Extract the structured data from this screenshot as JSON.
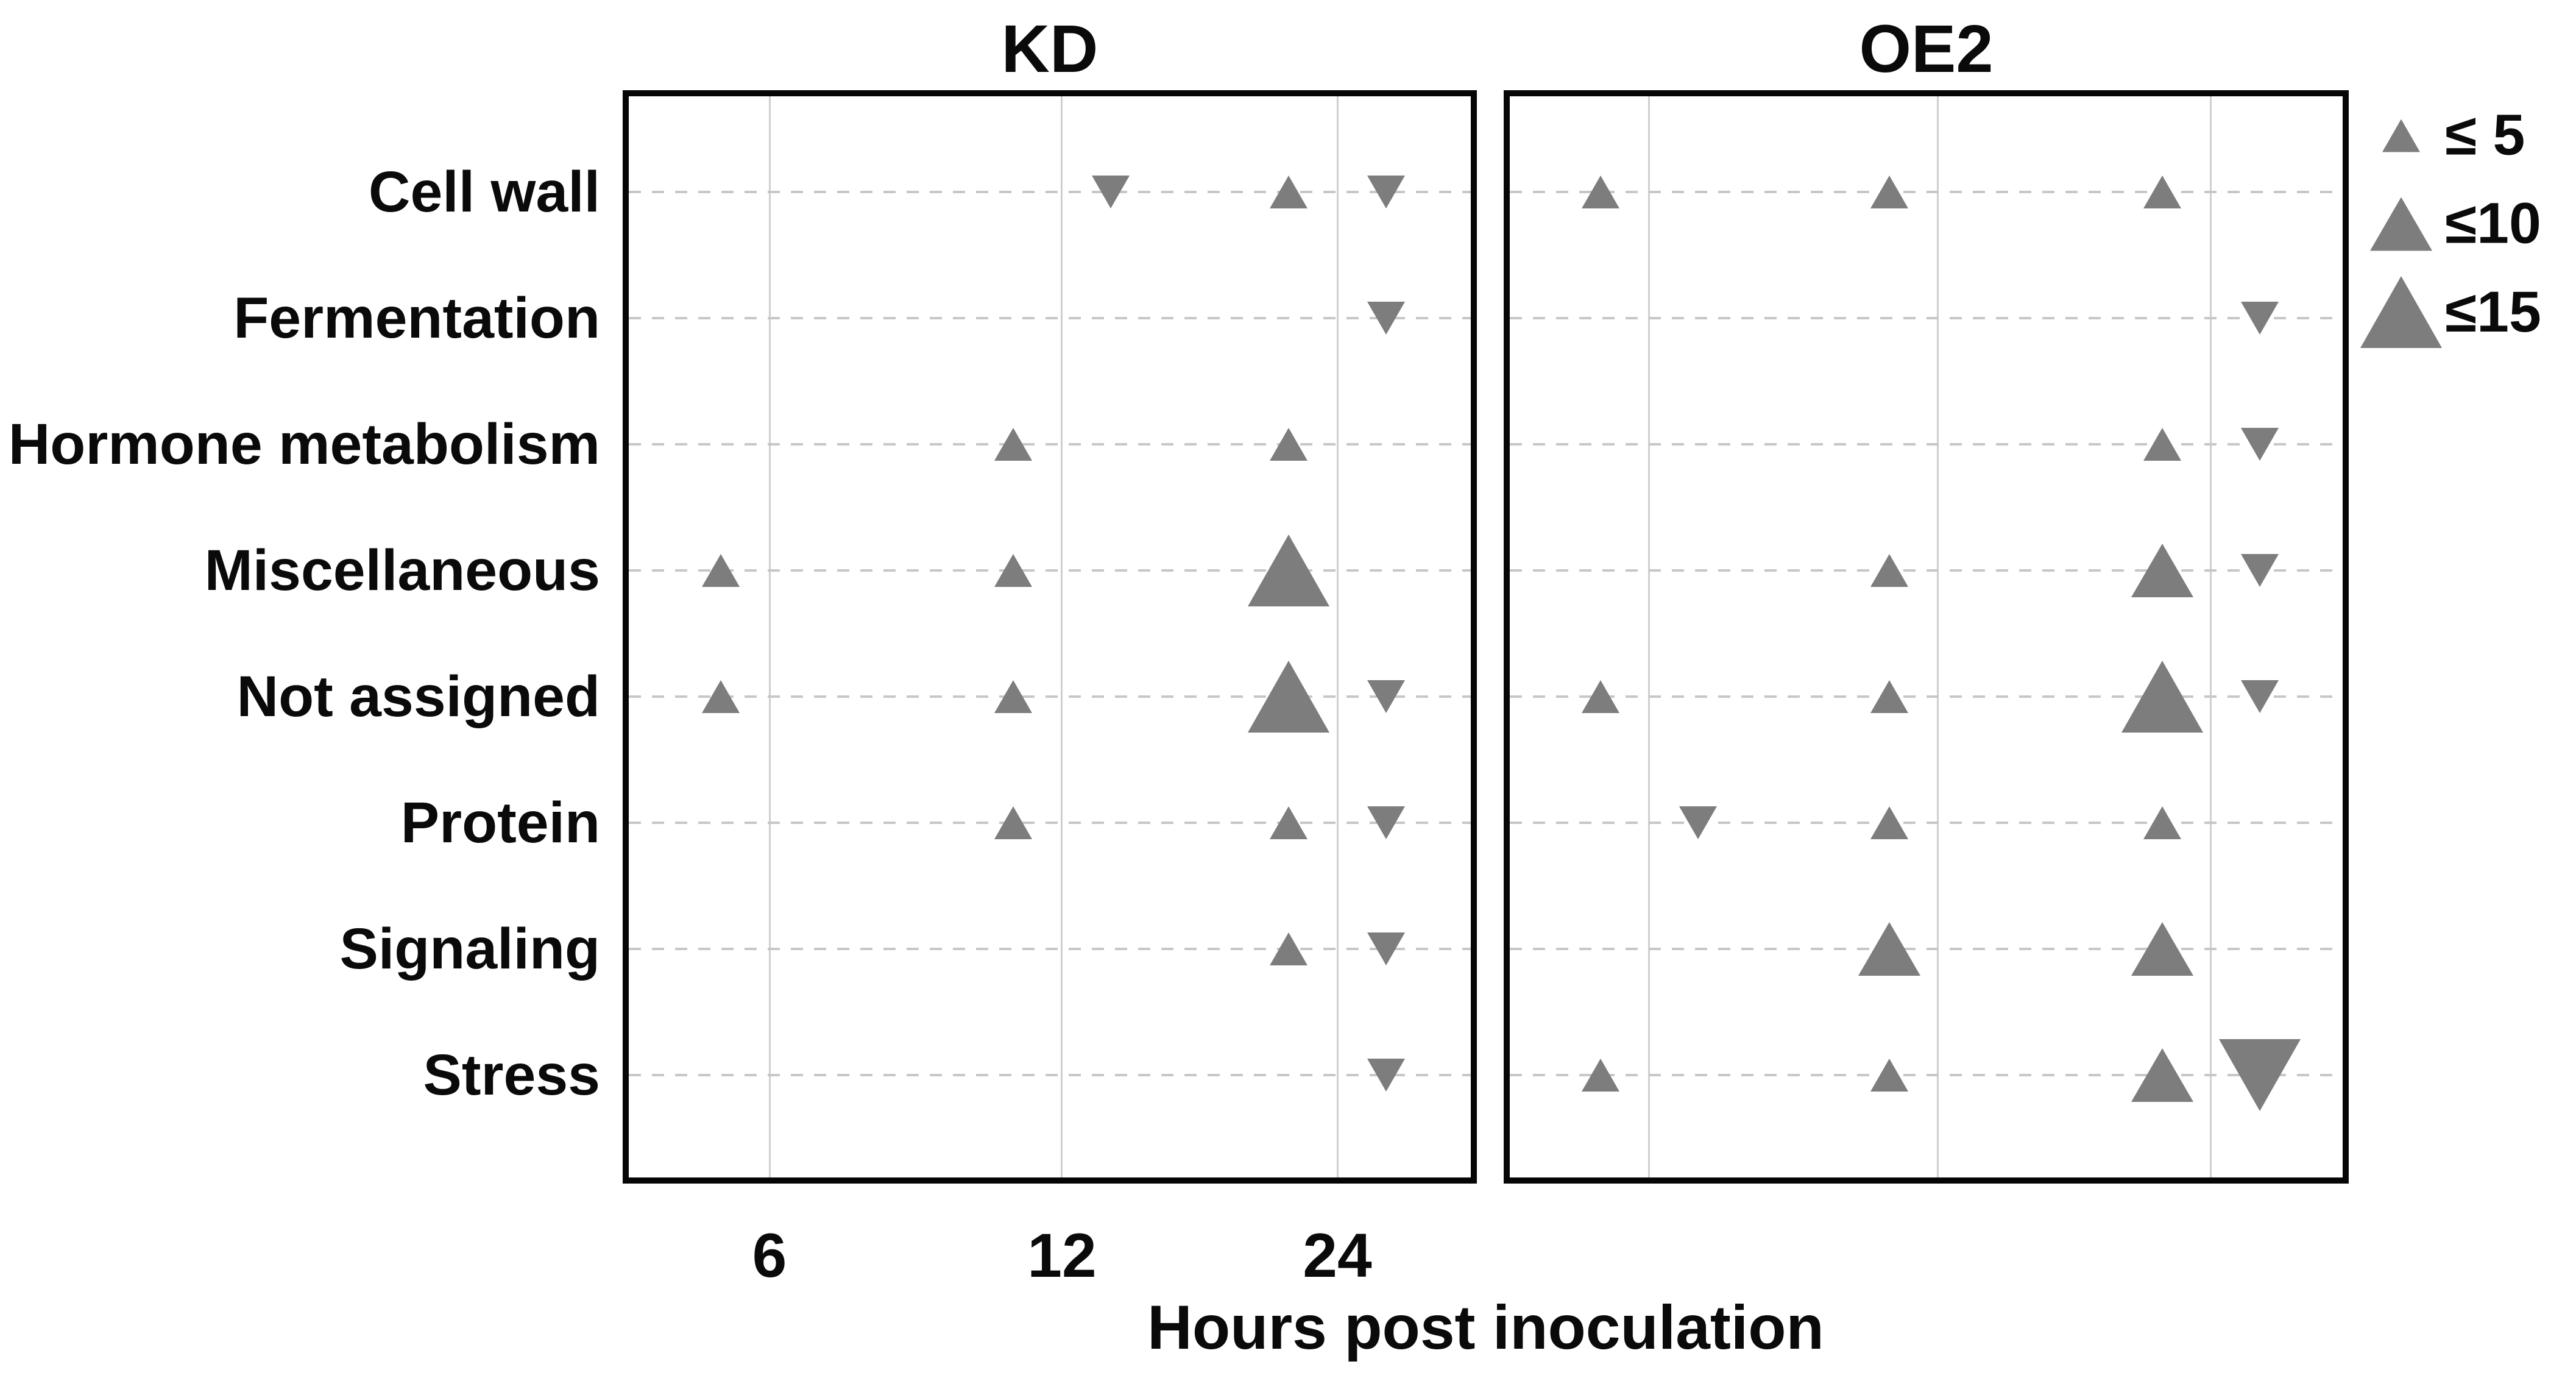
{
  "chart_data": {
    "type": "scatter",
    "subtype": "triangle dot plot (up triangle = up-regulated, down triangle = down-regulated)",
    "title": "",
    "xlabel": "Hours post inoculation",
    "ylabel": "",
    "categories": [
      "Cell wall",
      "Fermentation",
      "Hormone metabolism",
      "Miscellaneous",
      "Not assigned",
      "Protein",
      "Signaling",
      "Stress"
    ],
    "x_ticks": [
      "6",
      "12",
      "24"
    ],
    "x_values": [
      6,
      12,
      24
    ],
    "grid": "solid vertical gridlines at each hour; dashed horizontal gridline per category",
    "marker_color": "#7d7d7d",
    "legend": {
      "position": "top-right",
      "entries": [
        {
          "label": "≤ 5",
          "bin": "≤5",
          "max_value": 5,
          "size": "small"
        },
        {
          "label": "≤10",
          "bin": "≤10",
          "max_value": 10,
          "size": "medium"
        },
        {
          "label": "≤15",
          "bin": "≤15",
          "max_value": 15,
          "size": "large"
        }
      ]
    },
    "panels": [
      {
        "name": "KD",
        "points": [
          {
            "category": "Cell wall",
            "hour": 12,
            "direction": "down",
            "bin": "≤5"
          },
          {
            "category": "Cell wall",
            "hour": 24,
            "direction": "up",
            "bin": "≤5"
          },
          {
            "category": "Cell wall",
            "hour": 24,
            "direction": "down",
            "bin": "≤5"
          },
          {
            "category": "Fermentation",
            "hour": 24,
            "direction": "down",
            "bin": "≤5"
          },
          {
            "category": "Hormone metabolism",
            "hour": 12,
            "direction": "up",
            "bin": "≤5"
          },
          {
            "category": "Hormone metabolism",
            "hour": 24,
            "direction": "up",
            "bin": "≤5"
          },
          {
            "category": "Miscellaneous",
            "hour": 6,
            "direction": "up",
            "bin": "≤5"
          },
          {
            "category": "Miscellaneous",
            "hour": 12,
            "direction": "up",
            "bin": "≤5"
          },
          {
            "category": "Miscellaneous",
            "hour": 24,
            "direction": "up",
            "bin": "≤15"
          },
          {
            "category": "Not assigned",
            "hour": 6,
            "direction": "up",
            "bin": "≤5"
          },
          {
            "category": "Not assigned",
            "hour": 12,
            "direction": "up",
            "bin": "≤5"
          },
          {
            "category": "Not assigned",
            "hour": 24,
            "direction": "up",
            "bin": "≤15"
          },
          {
            "category": "Not assigned",
            "hour": 24,
            "direction": "down",
            "bin": "≤5"
          },
          {
            "category": "Protein",
            "hour": 12,
            "direction": "up",
            "bin": "≤5"
          },
          {
            "category": "Protein",
            "hour": 24,
            "direction": "up",
            "bin": "≤5"
          },
          {
            "category": "Protein",
            "hour": 24,
            "direction": "down",
            "bin": "≤5"
          },
          {
            "category": "Signaling",
            "hour": 24,
            "direction": "up",
            "bin": "≤5"
          },
          {
            "category": "Signaling",
            "hour": 24,
            "direction": "down",
            "bin": "≤5"
          },
          {
            "category": "Stress",
            "hour": 24,
            "direction": "down",
            "bin": "≤5"
          }
        ]
      },
      {
        "name": "OE2",
        "points": [
          {
            "category": "Cell wall",
            "hour": 6,
            "direction": "up",
            "bin": "≤5"
          },
          {
            "category": "Cell wall",
            "hour": 12,
            "direction": "up",
            "bin": "≤5"
          },
          {
            "category": "Cell wall",
            "hour": 24,
            "direction": "up",
            "bin": "≤5"
          },
          {
            "category": "Fermentation",
            "hour": 24,
            "direction": "down",
            "bin": "≤5"
          },
          {
            "category": "Hormone metabolism",
            "hour": 24,
            "direction": "up",
            "bin": "≤5"
          },
          {
            "category": "Hormone metabolism",
            "hour": 24,
            "direction": "down",
            "bin": "≤5"
          },
          {
            "category": "Miscellaneous",
            "hour": 12,
            "direction": "up",
            "bin": "≤5"
          },
          {
            "category": "Miscellaneous",
            "hour": 24,
            "direction": "up",
            "bin": "≤10"
          },
          {
            "category": "Miscellaneous",
            "hour": 24,
            "direction": "down",
            "bin": "≤5"
          },
          {
            "category": "Not assigned",
            "hour": 6,
            "direction": "up",
            "bin": "≤5"
          },
          {
            "category": "Not assigned",
            "hour": 12,
            "direction": "up",
            "bin": "≤5"
          },
          {
            "category": "Not assigned",
            "hour": 24,
            "direction": "up",
            "bin": "≤15"
          },
          {
            "category": "Not assigned",
            "hour": 24,
            "direction": "down",
            "bin": "≤5"
          },
          {
            "category": "Protein",
            "hour": 6,
            "direction": "down",
            "bin": "≤5"
          },
          {
            "category": "Protein",
            "hour": 12,
            "direction": "up",
            "bin": "≤5"
          },
          {
            "category": "Protein",
            "hour": 24,
            "direction": "up",
            "bin": "≤5"
          },
          {
            "category": "Signaling",
            "hour": 12,
            "direction": "up",
            "bin": "≤10"
          },
          {
            "category": "Signaling",
            "hour": 24,
            "direction": "up",
            "bin": "≤10"
          },
          {
            "category": "Stress",
            "hour": 6,
            "direction": "up",
            "bin": "≤5"
          },
          {
            "category": "Stress",
            "hour": 12,
            "direction": "up",
            "bin": "≤5"
          },
          {
            "category": "Stress",
            "hour": 24,
            "direction": "up",
            "bin": "≤10"
          },
          {
            "category": "Stress",
            "hour": 24,
            "direction": "down",
            "bin": "≤15"
          }
        ]
      }
    ]
  }
}
